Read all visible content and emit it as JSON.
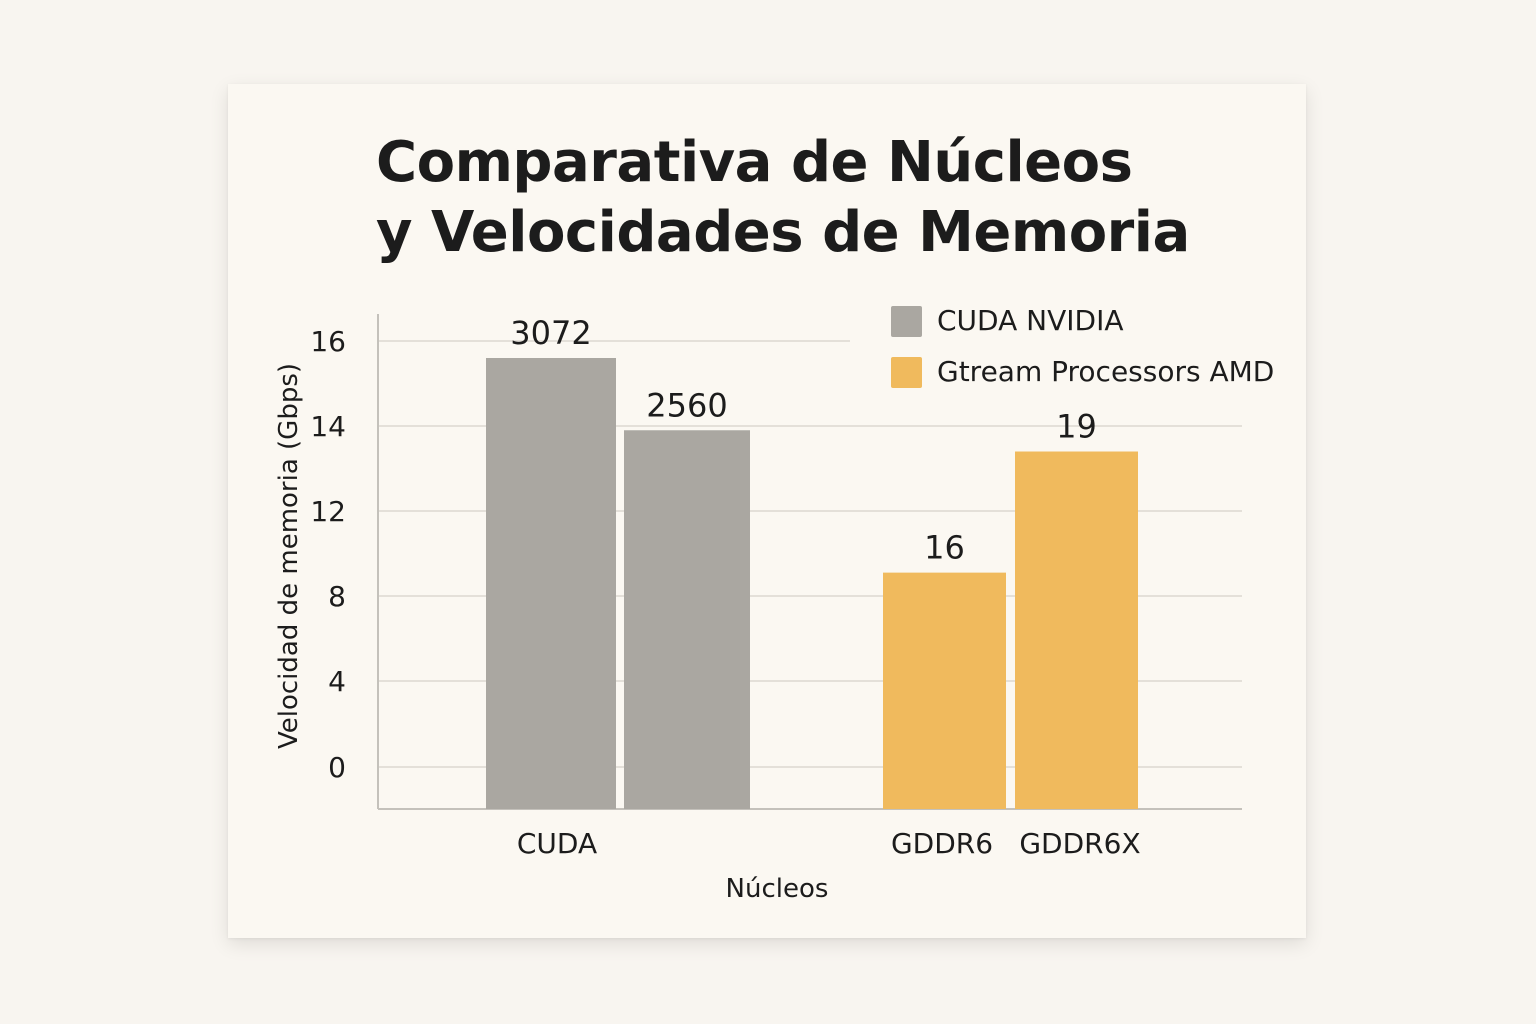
{
  "chart_data": {
    "type": "bar",
    "title": [
      "Comparativa de Núcleos",
      "y Velocidades de Memoria"
    ],
    "xlabel": "Núcleos",
    "ylabel": "Velocidad de memoria (Gbps)",
    "ylim": [
      0,
      16
    ],
    "yticks": [
      0,
      4,
      8,
      12,
      14,
      16
    ],
    "grid": true,
    "legend_position": "top-right",
    "series": [
      {
        "name": "CUDA NVIDIA",
        "color": "#aaa7a1"
      },
      {
        "name": "Gtream Processors AMD",
        "color": "#f0ba5d"
      }
    ],
    "bars": [
      {
        "series": 0,
        "value": 15.6,
        "label": "3072"
      },
      {
        "series": 0,
        "value": 13.9,
        "label": "2560"
      },
      {
        "series": 1,
        "value": 9.1,
        "label": "16"
      },
      {
        "series": 1,
        "value": 13.4,
        "label": "19"
      }
    ],
    "categories": [
      "CUDA",
      "GDDR6",
      "GDDR6X"
    ]
  }
}
